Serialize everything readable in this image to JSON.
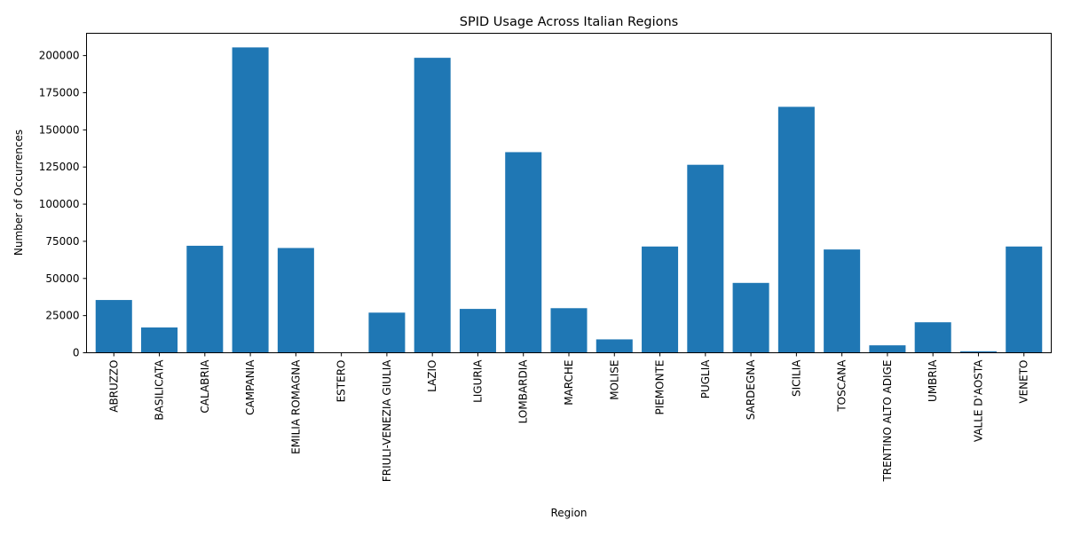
{
  "chart_data": {
    "type": "bar",
    "title": "SPID Usage Across Italian Regions",
    "xlabel": "Region",
    "ylabel": "Number of Occurrences",
    "ylim": [
      0,
      215000
    ],
    "yticks": [
      0,
      25000,
      50000,
      75000,
      100000,
      125000,
      150000,
      175000,
      200000
    ],
    "grid": false,
    "bar_color": "#1f77b4",
    "categories": [
      "ABRUZZO",
      "BASILICATA",
      "CALABRIA",
      "CAMPANIA",
      "EMILIA ROMAGNA",
      "ESTERO",
      "FRIULI-VENEZIA GIULIA",
      "LAZIO",
      "LIGURIA",
      "LOMBARDIA",
      "MARCHE",
      "MOLISE",
      "PIEMONTE",
      "PUGLIA",
      "SARDEGNA",
      "SICILIA",
      "TOSCANA",
      "TRENTINO ALTO ADIGE",
      "UMBRIA",
      "VALLE D'AOSTA",
      "VENETO"
    ],
    "values": [
      35500,
      17000,
      72000,
      205500,
      70500,
      200,
      27000,
      198500,
      29500,
      135000,
      30000,
      9000,
      71500,
      126500,
      47000,
      165500,
      69500,
      5000,
      20500,
      1000,
      71500
    ]
  }
}
